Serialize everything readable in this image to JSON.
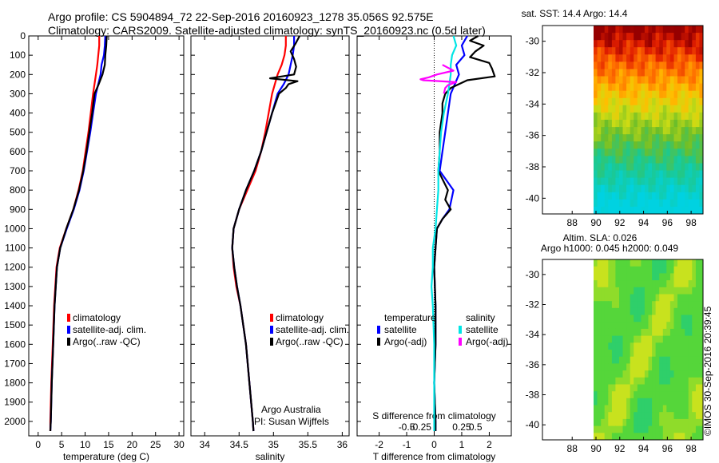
{
  "header": {
    "line1": "Argo profile: CS 5904894_72 22-Sep-2016 20160923_1278 35.056S 92.575E",
    "line2": "Climatology: CARS2009. Satellite-adjusted climatology: synTS_20160923.nc (0.5d later)"
  },
  "legend": {
    "climatology": "climatology",
    "satellite": "satellite-adj. clim.",
    "argo": "Argo(..raw -QC)",
    "temperature_header": "temperature",
    "salinity_header": "salinity",
    "satellite_short": "satellite",
    "argo_adj": "Argo(-adj)"
  },
  "credit": {
    "line1": "Argo Australia",
    "line2": "PI: Susan Wijffels"
  },
  "watermark": "©IMOS 30-Sep-2016 20:39:45",
  "map_top": {
    "title": "sat. SST: 14.4 Argo: 14.4"
  },
  "map_bottom": {
    "title1": "Altim. SLA: 0.026",
    "title2": "Argo h1000: 0.045 h2000: 0.049"
  },
  "colors": {
    "climatology": "#ff0000",
    "satellite": "#0000ff",
    "argo": "#000000",
    "sal_satellite": "#00e5e5",
    "sal_argo": "#ff00ff"
  },
  "chart_data": [
    {
      "type": "line",
      "xlabel": "temperature (deg C)",
      "ylabel": "",
      "xlim": [
        -2,
        31
      ],
      "ylim": [
        2075,
        0
      ],
      "xticks": [
        0,
        5,
        10,
        15,
        20,
        25,
        30
      ],
      "yticks": [
        0,
        100,
        200,
        300,
        400,
        500,
        600,
        700,
        800,
        900,
        1000,
        1100,
        1200,
        1300,
        1400,
        1500,
        1600,
        1700,
        1800,
        1900,
        2000
      ],
      "series": [
        {
          "name": "climatology",
          "color": "#ff0000",
          "depth": [
            0,
            50,
            100,
            150,
            200,
            300,
            400,
            500,
            600,
            700,
            800,
            900,
            1000,
            1100,
            1200,
            1400,
            1600,
            1800,
            2000,
            2050
          ],
          "values": [
            13.0,
            13.0,
            12.8,
            12.6,
            12.3,
            11.7,
            11.2,
            10.7,
            10.1,
            9.5,
            8.6,
            7.5,
            6.0,
            4.6,
            3.9,
            3.4,
            3.1,
            2.8,
            2.6,
            2.6
          ]
        },
        {
          "name": "satellite-adj. clim.",
          "color": "#0000ff",
          "depth": [
            0,
            50,
            100,
            150,
            200,
            250,
            300,
            400,
            500,
            600,
            700,
            800,
            900,
            1000,
            1100,
            1200,
            1400,
            1600,
            1800,
            2000,
            2050
          ],
          "values": [
            14.3,
            14.2,
            14.0,
            13.5,
            13.3,
            12.8,
            12.3,
            11.7,
            11.1,
            10.4,
            9.7,
            8.8,
            7.6,
            6.1,
            4.7,
            4.0,
            3.5,
            3.2,
            2.9,
            2.7,
            2.6
          ]
        },
        {
          "name": "Argo(..raw -QC)",
          "color": "#000000",
          "depth": [
            0,
            50,
            100,
            150,
            200,
            250,
            300,
            400,
            500,
            600,
            700,
            800,
            900,
            1000,
            1100,
            1200,
            1400,
            1600,
            1800,
            2000,
            2050
          ],
          "values": [
            14.6,
            14.5,
            14.3,
            14.2,
            13.7,
            12.9,
            12.0,
            11.5,
            10.9,
            10.3,
            9.6,
            8.7,
            7.5,
            6.0,
            4.7,
            4.0,
            3.5,
            3.2,
            2.9,
            2.7,
            2.6
          ]
        }
      ]
    },
    {
      "type": "line",
      "xlabel": "salinity",
      "ylabel": "",
      "xlim": [
        33.8,
        36.1
      ],
      "ylim": [
        2075,
        0
      ],
      "xticks": [
        34,
        34.5,
        35,
        35.5,
        36
      ],
      "xtick_labels": [
        "34",
        "34.5",
        "35",
        "35.5",
        "36"
      ],
      "series": [
        {
          "name": "climatology",
          "color": "#ff0000",
          "depth": [
            0,
            50,
            100,
            150,
            200,
            300,
            400,
            500,
            600,
            700,
            800,
            900,
            1000,
            1100,
            1200,
            1300,
            1400,
            1600,
            1800,
            2000,
            2050
          ],
          "values": [
            35.18,
            35.18,
            35.16,
            35.12,
            35.06,
            34.98,
            34.93,
            34.88,
            34.82,
            34.74,
            34.62,
            34.5,
            34.42,
            34.4,
            34.42,
            34.46,
            34.52,
            34.6,
            34.65,
            34.7,
            34.71
          ]
        },
        {
          "name": "satellite-adj. clim.",
          "color": "#0000ff",
          "depth": [
            0,
            50,
            100,
            150,
            200,
            250,
            300,
            400,
            500,
            600,
            700,
            800,
            900,
            1000,
            1100,
            1200,
            1300,
            1400,
            1600,
            1800,
            2000,
            2050
          ],
          "values": [
            35.3,
            35.3,
            35.28,
            35.25,
            35.22,
            35.15,
            35.06,
            34.98,
            34.9,
            34.82,
            34.72,
            34.6,
            34.5,
            34.42,
            34.4,
            34.43,
            34.47,
            34.52,
            34.6,
            34.65,
            34.7,
            34.71
          ]
        },
        {
          "name": "Argo(..raw -QC)",
          "color": "#000000",
          "depth": [
            0,
            40,
            80,
            120,
            160,
            200,
            220,
            235,
            250,
            270,
            300,
            400,
            500,
            600,
            700,
            800,
            900,
            1000,
            1100,
            1200,
            1300,
            1400,
            1600,
            1800,
            2000,
            2050
          ],
          "values": [
            35.38,
            35.32,
            35.25,
            35.3,
            35.33,
            35.3,
            34.95,
            35.35,
            35.22,
            35.18,
            35.08,
            34.98,
            34.9,
            34.82,
            34.72,
            34.6,
            34.5,
            34.42,
            34.4,
            34.43,
            34.47,
            34.52,
            34.6,
            34.65,
            34.7,
            34.71
          ]
        }
      ]
    },
    {
      "type": "line",
      "xlabel": "T difference from climatology",
      "top_label": "S difference from climatology",
      "xlim": [
        -2.8,
        2.8
      ],
      "ylim": [
        2075,
        0
      ],
      "xticks": [
        -2,
        -1,
        0,
        1,
        2
      ],
      "xtick_labels": [
        "-2",
        "-1",
        "0",
        "1",
        "2"
      ],
      "s_ticks": [
        -1,
        -0.5,
        1,
        1.5
      ],
      "s_tick_labels": [
        "-0.5",
        "-0.25",
        "0.25",
        "0.5"
      ],
      "legend_headers": [
        "temperature",
        "salinity"
      ],
      "series": [
        {
          "name": "satellite",
          "group": "temperature",
          "color": "#0000ff",
          "depth": [
            0,
            50,
            100,
            150,
            200,
            300,
            400,
            500,
            600,
            700,
            800,
            900,
            950,
            1000,
            1100,
            1200,
            1400,
            1600,
            1800,
            2000,
            2050
          ],
          "values": [
            1.2,
            1.0,
            1.1,
            0.8,
            0.9,
            0.6,
            0.5,
            0.4,
            0.3,
            0.2,
            0.7,
            0.55,
            0.3,
            0.1,
            0.05,
            0.0,
            0.05,
            0.05,
            0.0,
            0.05,
            0.05
          ]
        },
        {
          "name": "Argo(-adj)",
          "group": "temperature",
          "color": "#000000",
          "depth": [
            0,
            25,
            50,
            80,
            110,
            140,
            170,
            210,
            230,
            250,
            270,
            300,
            350,
            400,
            500,
            600,
            700,
            800,
            850,
            900,
            950,
            1000,
            1100,
            1200,
            1400,
            1600,
            1800,
            2000,
            2050
          ],
          "values": [
            1.6,
            1.3,
            1.8,
            1.5,
            1.3,
            2.0,
            2.1,
            2.2,
            1.2,
            0.9,
            0.6,
            0.4,
            0.3,
            0.3,
            0.2,
            0.2,
            0.15,
            0.5,
            0.4,
            0.6,
            0.3,
            0.1,
            0.05,
            0.0,
            0.05,
            0.05,
            0.0,
            0.05,
            0.05
          ]
        },
        {
          "name": "satellite",
          "group": "salinity",
          "color": "#00e5e5",
          "depth": [
            0,
            50,
            100,
            150,
            200,
            250,
            300,
            400,
            500,
            600,
            700,
            800,
            900,
            1000,
            1100,
            1200,
            1300,
            1400,
            1600,
            1800,
            2000,
            2050
          ],
          "values": [
            0.7,
            0.8,
            0.65,
            0.6,
            0.6,
            0.55,
            0.5,
            0.35,
            0.25,
            0.2,
            0.15,
            0.15,
            0.1,
            0.05,
            -0.05,
            -0.05,
            -0.1,
            -0.05,
            0.0,
            0.0,
            0.0,
            0.0
          ]
        },
        {
          "name": "Argo(-adj)",
          "group": "salinity",
          "color": "#ff00ff",
          "depth": [
            150,
            180,
            200,
            215,
            225,
            230,
            240,
            255,
            270,
            300
          ],
          "values": [
            0.3,
            0.7,
            0.1,
            -0.2,
            -0.5,
            -0.4,
            0.8,
            0.5,
            0.4,
            0.35
          ]
        }
      ]
    }
  ],
  "maps": [
    {
      "lon_ticks": [
        88,
        90,
        92,
        94,
        96,
        98
      ],
      "lat_ticks": [
        -30,
        -32,
        -34,
        -36,
        -38,
        -40
      ]
    },
    {
      "lon_ticks": [
        88,
        90,
        92,
        94,
        96,
        98
      ],
      "lat_ticks": [
        -30,
        -32,
        -34,
        -36,
        -38,
        -40
      ]
    }
  ]
}
